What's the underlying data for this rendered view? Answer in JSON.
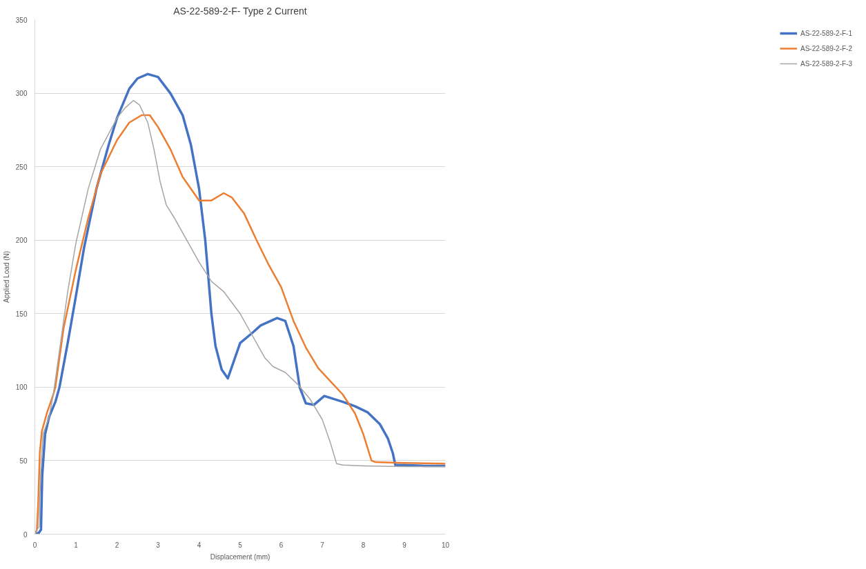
{
  "chart_data": {
    "type": "line",
    "title": "AS-22-589-2-F- Type 2 Current",
    "xlabel": "Displacement (mm)",
    "ylabel": "Applied Load (N)",
    "xlim": [
      0,
      10
    ],
    "xticks": [
      0,
      1,
      2,
      3,
      4,
      5,
      6,
      7,
      8,
      9,
      10
    ],
    "ylim": [
      0,
      350
    ],
    "yticks": [
      0,
      50,
      100,
      150,
      200,
      250,
      300,
      350
    ],
    "grid": "y",
    "legend": "right",
    "marker": "none",
    "line_style": "solid",
    "series": [
      {
        "name": "AS-22-589-2-F-1",
        "color": "#4472c4",
        "x": [
          0,
          0.1,
          0.15,
          0.18,
          0.25,
          0.35,
          0.5,
          0.6,
          0.8,
          1.0,
          1.2,
          1.5,
          1.8,
          2.0,
          2.3,
          2.5,
          2.75,
          3.0,
          3.3,
          3.6,
          3.8,
          4.0,
          4.15,
          4.3,
          4.4,
          4.55,
          4.7,
          4.85,
          5.0,
          5.3,
          5.5,
          5.9,
          6.1,
          6.3,
          6.45,
          6.6,
          6.8,
          7.05,
          7.5,
          7.8,
          8.1,
          8.4,
          8.6,
          8.72,
          8.78,
          9.0,
          9.5,
          10
        ],
        "values": [
          0,
          1,
          3,
          40,
          68,
          80,
          90,
          100,
          130,
          162,
          195,
          235,
          265,
          283,
          303,
          310,
          313,
          311,
          300,
          285,
          265,
          235,
          200,
          150,
          128,
          112,
          106,
          118,
          130,
          137,
          142,
          147,
          145,
          128,
          100,
          89,
          88,
          94,
          90,
          87,
          83,
          75,
          65,
          55,
          47,
          47,
          46.5,
          46.5
        ]
      },
      {
        "name": "AS-22-589-2-F-2",
        "color": "#ed7d31",
        "x": [
          0,
          0.05,
          0.08,
          0.12,
          0.17,
          0.3,
          0.45,
          0.5,
          0.7,
          1.0,
          1.3,
          1.6,
          2.0,
          2.3,
          2.6,
          2.8,
          3.0,
          3.3,
          3.6,
          4.0,
          4.3,
          4.6,
          4.8,
          5.1,
          5.4,
          5.7,
          6.0,
          6.3,
          6.6,
          6.9,
          7.2,
          7.5,
          7.8,
          8.0,
          8.2,
          8.3,
          9,
          10
        ],
        "values": [
          0,
          3,
          20,
          55,
          70,
          83,
          95,
          100,
          140,
          180,
          215,
          245,
          268,
          280,
          285,
          285,
          277,
          262,
          243,
          227,
          227,
          232,
          229,
          218,
          200,
          183,
          168,
          145,
          127,
          113,
          104,
          95,
          82,
          68,
          50,
          49,
          48.5,
          48
        ]
      },
      {
        "name": "AS-22-589-2-F-3",
        "color": "#a5a5a5",
        "x": [
          0,
          0.05,
          0.1,
          0.14,
          0.2,
          0.35,
          0.45,
          0.6,
          0.8,
          1.0,
          1.3,
          1.6,
          2.0,
          2.2,
          2.4,
          2.55,
          2.75,
          2.9,
          3.05,
          3.2,
          3.4,
          3.7,
          4.0,
          4.3,
          4.6,
          5.0,
          5.3,
          5.6,
          5.8,
          6.1,
          6.4,
          6.7,
          7.0,
          7.2,
          7.35,
          7.5,
          8,
          9,
          10
        ],
        "values": [
          0,
          3,
          5,
          40,
          68,
          80,
          95,
          125,
          165,
          198,
          235,
          262,
          283,
          290,
          295,
          292,
          280,
          262,
          240,
          224,
          215,
          200,
          185,
          172,
          165,
          150,
          135,
          120,
          114,
          110,
          102,
          92,
          78,
          62,
          48,
          47,
          46.5,
          46,
          46
        ]
      }
    ]
  }
}
